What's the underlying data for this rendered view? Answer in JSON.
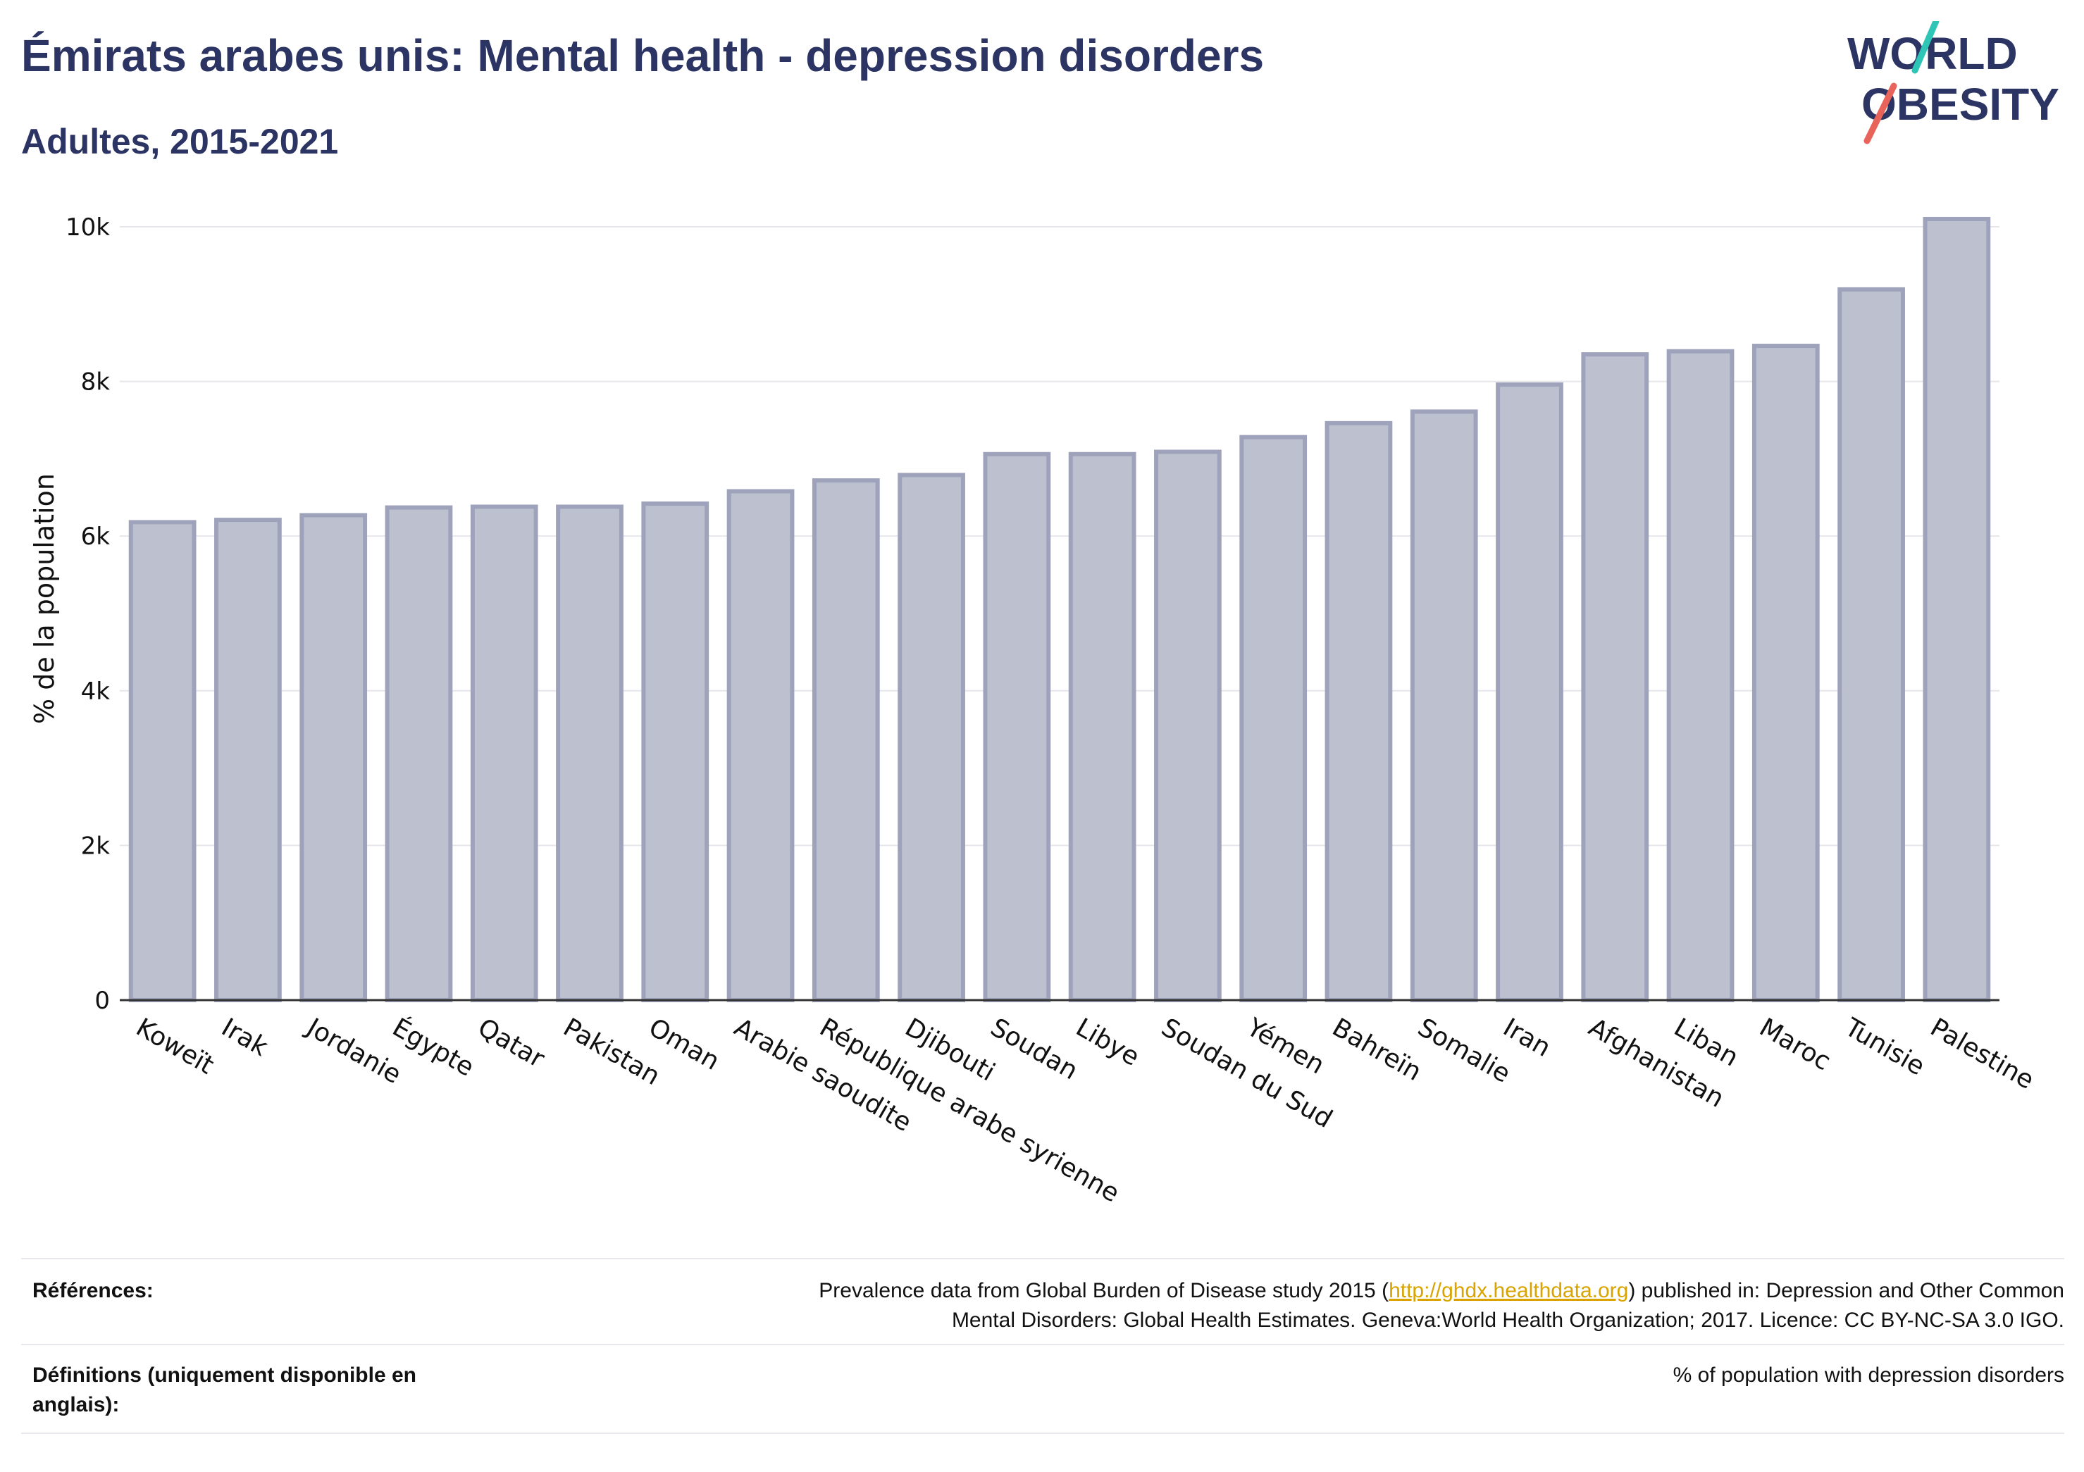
{
  "header": {
    "title": "Émirats arabes unis: Mental health - depression disorders",
    "subtitle": "Adultes, 2015-2021"
  },
  "logo": {
    "line1": "WORLD",
    "line2": "OBESITY",
    "colors": {
      "text": "#2b3462",
      "teal": "#2ec4b6",
      "coral": "#e8645a"
    }
  },
  "chart_data": {
    "type": "bar",
    "title": "",
    "xlabel": "",
    "ylabel": "% de la population",
    "ylim": [
      0,
      10200
    ],
    "yticks": [
      0,
      2000,
      4000,
      6000,
      8000,
      10000
    ],
    "ytick_labels": [
      "0",
      "2k",
      "4k",
      "6k",
      "8k",
      "10k"
    ],
    "grid": true,
    "bar_fill": "#bdc0cf",
    "bar_stroke": "#9ea3bb",
    "categories": [
      "Koweït",
      "Irak",
      "Jordanie",
      "Égypte",
      "Qatar",
      "Pakistan",
      "Oman",
      "Arabie saoudite",
      "République arabe syrienne",
      "Djibouti",
      "Soudan",
      "Libye",
      "Soudan du Sud",
      "Yémen",
      "Bahreïn",
      "Somalie",
      "Iran",
      "Afghanistan",
      "Liban",
      "Maroc",
      "Tunisie",
      "Palestine"
    ],
    "values": [
      6180,
      6210,
      6270,
      6370,
      6380,
      6380,
      6420,
      6580,
      6720,
      6790,
      7060,
      7060,
      7090,
      7280,
      7460,
      7610,
      7960,
      8350,
      8390,
      8460,
      9190,
      10100
    ]
  },
  "references": {
    "references_label": "Références:",
    "references_text_before": "Prevalence data from Global Burden of Disease study 2015 (",
    "references_link": "http://ghdx.healthdata.org",
    "references_text_after": ") published in: Depression and Other Common",
    "references_line2": "Mental Disorders: Global Health Estimates. Geneva:World Health Organization; 2017. Licence: CC BY-NC-SA 3.0 IGO.",
    "definitions_label_line1": "Définitions (uniquement disponible en",
    "definitions_label_line2": "anglais):",
    "definitions_text": "% of population with depression disorders"
  }
}
